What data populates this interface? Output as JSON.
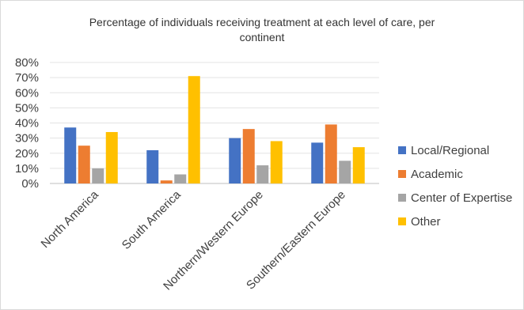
{
  "chart_data": {
    "type": "bar",
    "title": "Percentage of individuals receiving treatment at each level of care, per continent",
    "categories": [
      "North America",
      "South America",
      "Northern/Western Europe",
      "Southern/Eastern Europe"
    ],
    "series": [
      {
        "name": "Local/Regional",
        "color": "#4472c4",
        "values": [
          37,
          22,
          30,
          27
        ]
      },
      {
        "name": "Academic",
        "color": "#ed7d31",
        "values": [
          25,
          2,
          36,
          39
        ]
      },
      {
        "name": "Center of Expertise",
        "color": "#a5a5a5",
        "values": [
          10,
          6,
          12,
          15
        ]
      },
      {
        "name": "Other",
        "color": "#ffc000",
        "values": [
          34,
          71,
          28,
          24
        ]
      }
    ],
    "ylim": [
      0,
      80
    ],
    "yticks": [
      "0%",
      "10%",
      "20%",
      "30%",
      "40%",
      "50%",
      "60%",
      "70%",
      "80%"
    ],
    "y_unit": "%",
    "grid": true,
    "legend_position": "right"
  }
}
